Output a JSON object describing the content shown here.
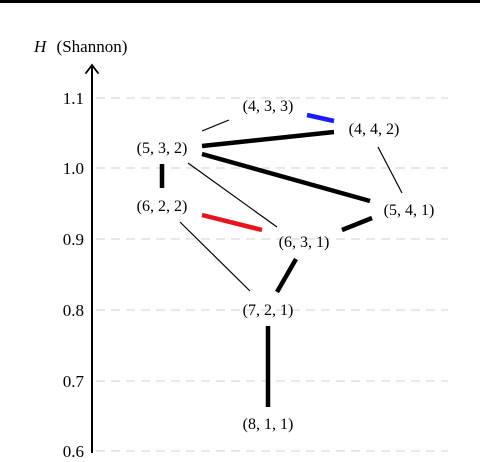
{
  "axis": {
    "title_symbol": "H",
    "title_text": "(Shannon)",
    "ticks": [
      {
        "value": 0.6,
        "label": "0.6"
      },
      {
        "value": 0.7,
        "label": "0.7"
      },
      {
        "value": 0.8,
        "label": "0.8"
      },
      {
        "value": 0.9,
        "label": "0.9"
      },
      {
        "value": 1.0,
        "label": "1.0"
      },
      {
        "value": 1.1,
        "label": "1.1"
      }
    ]
  },
  "nodes": [
    {
      "id": "n433",
      "label": "(4, 3, 3)"
    },
    {
      "id": "n442",
      "label": "(4, 4, 2)"
    },
    {
      "id": "n532",
      "label": "(5, 3, 2)"
    },
    {
      "id": "n622",
      "label": "(6, 2, 2)"
    },
    {
      "id": "n541",
      "label": "(5, 4, 1)"
    },
    {
      "id": "n631",
      "label": "(6, 3, 1)"
    },
    {
      "id": "n721",
      "label": "(7, 2, 1)"
    },
    {
      "id": "n811",
      "label": "(8, 1, 1)"
    }
  ],
  "edges": [
    {
      "from": "(4, 3, 3)",
      "to": "(4, 4, 2)",
      "weight": "thick",
      "color": "#1a1aff"
    },
    {
      "from": "(5, 3, 2)",
      "to": "(4, 3, 3)",
      "weight": "thin",
      "color": "#000000"
    },
    {
      "from": "(5, 3, 2)",
      "to": "(4, 4, 2)",
      "weight": "thick",
      "color": "#000000"
    },
    {
      "from": "(5, 3, 2)",
      "to": "(5, 4, 1)",
      "weight": "thick",
      "color": "#000000"
    },
    {
      "from": "(5, 3, 2)",
      "to": "(6, 2, 2)",
      "weight": "thick",
      "color": "#000000"
    },
    {
      "from": "(5, 3, 2)",
      "to": "(6, 3, 1)",
      "weight": "thin",
      "color": "#000000"
    },
    {
      "from": "(4, 4, 2)",
      "to": "(5, 4, 1)",
      "weight": "thin",
      "color": "#000000"
    },
    {
      "from": "(6, 2, 2)",
      "to": "(6, 3, 1)",
      "weight": "thick",
      "color": "#e8141b"
    },
    {
      "from": "(6, 2, 2)",
      "to": "(7, 2, 1)",
      "weight": "thin",
      "color": "#000000"
    },
    {
      "from": "(5, 4, 1)",
      "to": "(6, 3, 1)",
      "weight": "thick",
      "color": "#000000"
    },
    {
      "from": "(6, 3, 1)",
      "to": "(7, 2, 1)",
      "weight": "thick",
      "color": "#000000"
    },
    {
      "from": "(7, 2, 1)",
      "to": "(8, 1, 1)",
      "weight": "thick",
      "color": "#000000"
    }
  ],
  "colors": {
    "axis": "#000000",
    "grid": "#d9d9d9",
    "highlight_blue": "#1a1aff",
    "highlight_red": "#e8141b"
  }
}
